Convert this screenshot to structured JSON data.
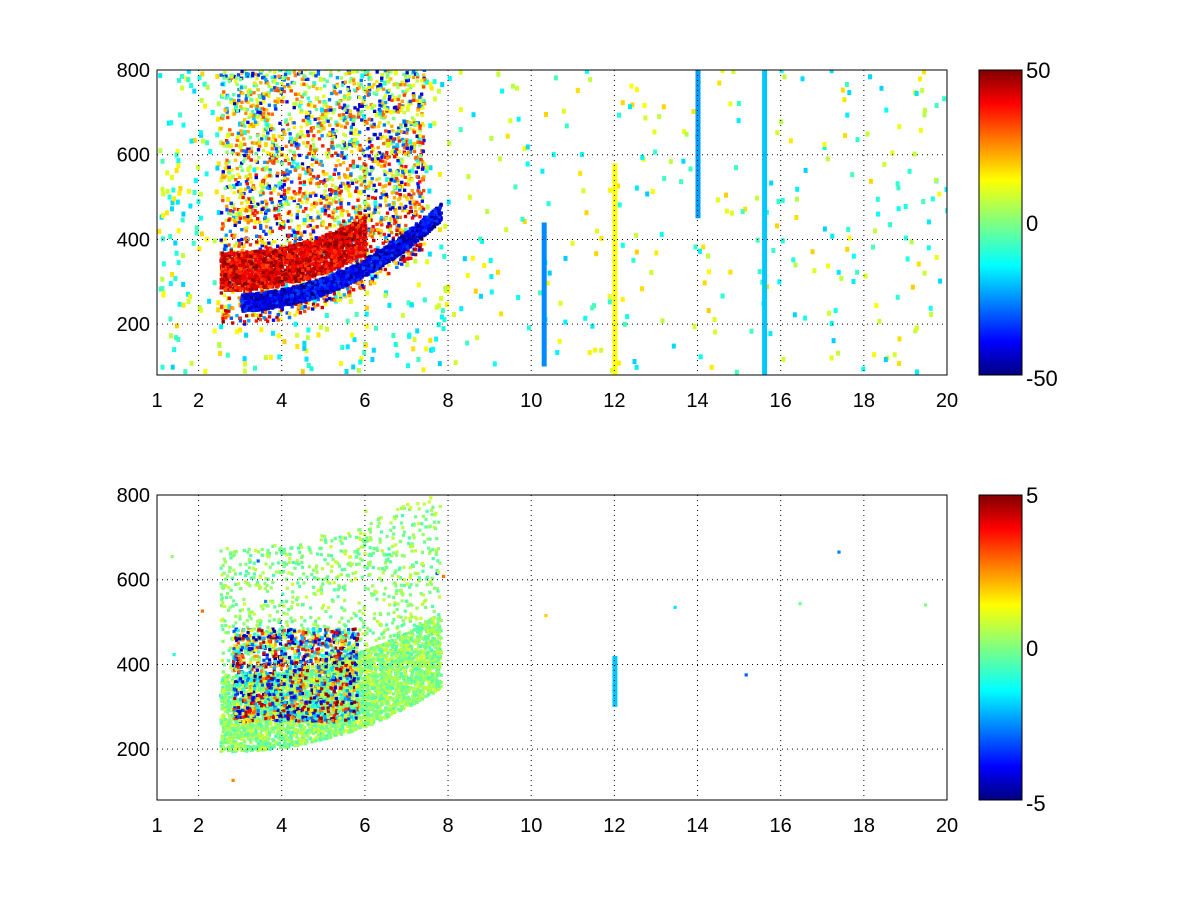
{
  "chart_data": [
    {
      "type": "heatmap",
      "title": "",
      "xlabel": "",
      "ylabel": "",
      "xlim": [
        1,
        20
      ],
      "ylim": [
        80,
        800
      ],
      "x_ticks": [
        1,
        2,
        4,
        6,
        8,
        10,
        12,
        14,
        16,
        18,
        20
      ],
      "y_ticks": [
        200,
        400,
        600,
        800
      ],
      "grid": true,
      "colormap": "jet",
      "clim": [
        -50,
        50
      ],
      "colorbar": {
        "position": "right",
        "ticks": [
          -50,
          0,
          50
        ]
      },
      "features": [
        {
          "kind": "ridge",
          "x_range": [
            2.5,
            7.8
          ],
          "y_start": 255,
          "y_end": 470,
          "value": -40,
          "description_visible": false
        },
        {
          "kind": "band",
          "x_range": [
            2.5,
            7.2
          ],
          "value": 35,
          "y_offset_above_ridge": 60
        },
        {
          "kind": "vertical_line",
          "x": 12,
          "y_range": [
            80,
            580
          ],
          "value": 12
        },
        {
          "kind": "vertical_line",
          "x": 14,
          "y_range": [
            450,
            800
          ],
          "value": -22
        },
        {
          "kind": "vertical_line",
          "x": 15.6,
          "y_range": [
            80,
            800
          ],
          "value": -18
        },
        {
          "kind": "vertical_line",
          "x": 10.3,
          "y_range": [
            100,
            440
          ],
          "value": -24
        }
      ]
    },
    {
      "type": "heatmap",
      "title": "",
      "xlabel": "",
      "ylabel": "",
      "xlim": [
        1,
        20
      ],
      "ylim": [
        80,
        800
      ],
      "x_ticks": [
        1,
        2,
        4,
        6,
        8,
        10,
        12,
        14,
        16,
        18,
        20
      ],
      "y_ticks": [
        200,
        400,
        600,
        800
      ],
      "grid": true,
      "colormap": "jet",
      "clim": [
        -5,
        5
      ],
      "colorbar": {
        "position": "right",
        "ticks": [
          -5,
          0,
          5
        ]
      },
      "features": [
        {
          "kind": "ridge",
          "x_range": [
            2.5,
            7.8
          ],
          "y_start": 270,
          "y_end": 420,
          "value": 0.5
        },
        {
          "kind": "cluster",
          "x_range": [
            2.8,
            4.5
          ],
          "y_range": [
            260,
            420
          ],
          "value_range": [
            -5,
            5
          ]
        },
        {
          "kind": "vertical_line",
          "x": 12,
          "y_range": [
            300,
            420
          ],
          "value": -1.8
        }
      ]
    }
  ],
  "panels": [
    {
      "x_tick_labels": [
        "1",
        "2",
        "4",
        "6",
        "8",
        "10",
        "12",
        "14",
        "16",
        "18",
        "20"
      ],
      "y_tick_labels": [
        "200",
        "400",
        "600",
        "800"
      ],
      "colorbar_labels": [
        "50",
        "0",
        "-50"
      ]
    },
    {
      "x_tick_labels": [
        "1",
        "2",
        "4",
        "6",
        "8",
        "10",
        "12",
        "14",
        "16",
        "18",
        "20"
      ],
      "y_tick_labels": [
        "200",
        "400",
        "600",
        "800"
      ],
      "colorbar_labels": [
        "5",
        "0",
        "-5"
      ]
    }
  ]
}
